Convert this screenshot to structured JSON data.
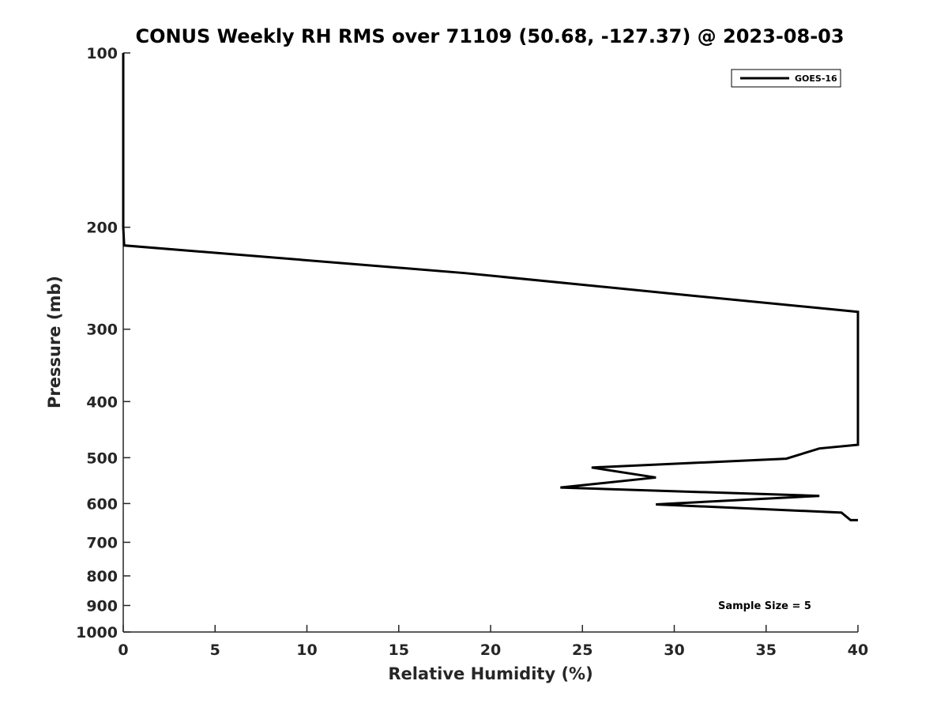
{
  "chart_data": {
    "type": "line",
    "title": "CONUS Weekly RH RMS over 71109 (50.68, -127.37) @ 2023-08-03",
    "xlabel": "Relative Humidity (%)",
    "ylabel": "Pressure (mb)",
    "xlim": [
      0,
      40
    ],
    "ylim": [
      100,
      1000
    ],
    "y_scale": "log",
    "y_reversed": true,
    "x_ticks": [
      "0",
      "5",
      "10",
      "15",
      "20",
      "25",
      "30",
      "35",
      "40"
    ],
    "x_tick_values": [
      0,
      5,
      10,
      15,
      20,
      25,
      30,
      35,
      40
    ],
    "y_ticks": [
      "100",
      "200",
      "300",
      "400",
      "500",
      "600",
      "700",
      "800",
      "900",
      "1000"
    ],
    "y_tick_values": [
      100,
      200,
      300,
      400,
      500,
      600,
      700,
      800,
      900,
      1000
    ],
    "grid": false,
    "legend_position": "top-right",
    "annotation": "Sample Size = 5",
    "series": [
      {
        "name": "GOES-16",
        "color": "#000000",
        "points": [
          {
            "x": 0.0,
            "y": 100
          },
          {
            "x": 0.0,
            "y": 125
          },
          {
            "x": 0.0,
            "y": 150
          },
          {
            "x": 0.0,
            "y": 175
          },
          {
            "x": 0.0,
            "y": 200
          },
          {
            "x": 0.05,
            "y": 215
          },
          {
            "x": 18.6,
            "y": 240
          },
          {
            "x": 30.7,
            "y": 262
          },
          {
            "x": 40.0,
            "y": 280
          },
          {
            "x": 40.0,
            "y": 475
          },
          {
            "x": 37.9,
            "y": 482
          },
          {
            "x": 36.1,
            "y": 502
          },
          {
            "x": 25.5,
            "y": 520
          },
          {
            "x": 29.0,
            "y": 541
          },
          {
            "x": 23.8,
            "y": 563
          },
          {
            "x": 37.9,
            "y": 582
          },
          {
            "x": 29.0,
            "y": 602
          },
          {
            "x": 39.1,
            "y": 622
          },
          {
            "x": 39.6,
            "y": 641
          },
          {
            "x": 40.0,
            "y": 641
          }
        ]
      }
    ]
  }
}
